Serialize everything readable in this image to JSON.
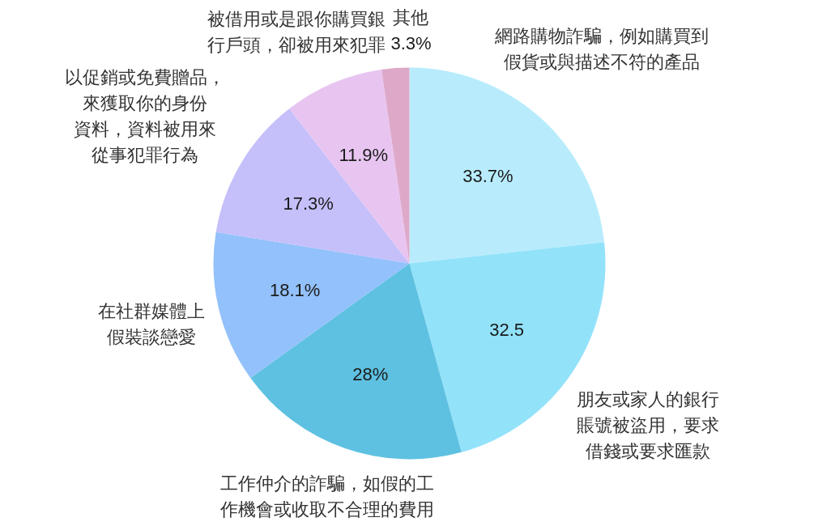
{
  "chart_data": {
    "type": "pie",
    "categories": [
      "網路購物詐騙，例如購買到假貨或與描述不符的產品",
      "朋友或家人的銀行賬號被盜用，要求借錢或要求匯款",
      "工作仲介的詐騙，如假的工作機會或收取不合理的費用",
      "在社群媒體上假裝談戀愛",
      "以促銷或免費贈品，來獲取你的身份資料，資料被用來從事犯罪行為",
      "被借用或是跟你購買銀行戶頭，卻被用來犯罪",
      "其他"
    ],
    "values": [
      33.7,
      32.5,
      28,
      18.1,
      17.3,
      11.9,
      3.3
    ],
    "value_labels": [
      "33.7%",
      "32.5",
      "28%",
      "18.1%",
      "17.3%",
      "11.9%",
      "3.3%"
    ],
    "colors": [
      "#b8ecfc",
      "#92e2fa",
      "#5ec1e1",
      "#93c1fb",
      "#c5bffa",
      "#e8c5f1",
      "#dea9c9"
    ]
  }
}
